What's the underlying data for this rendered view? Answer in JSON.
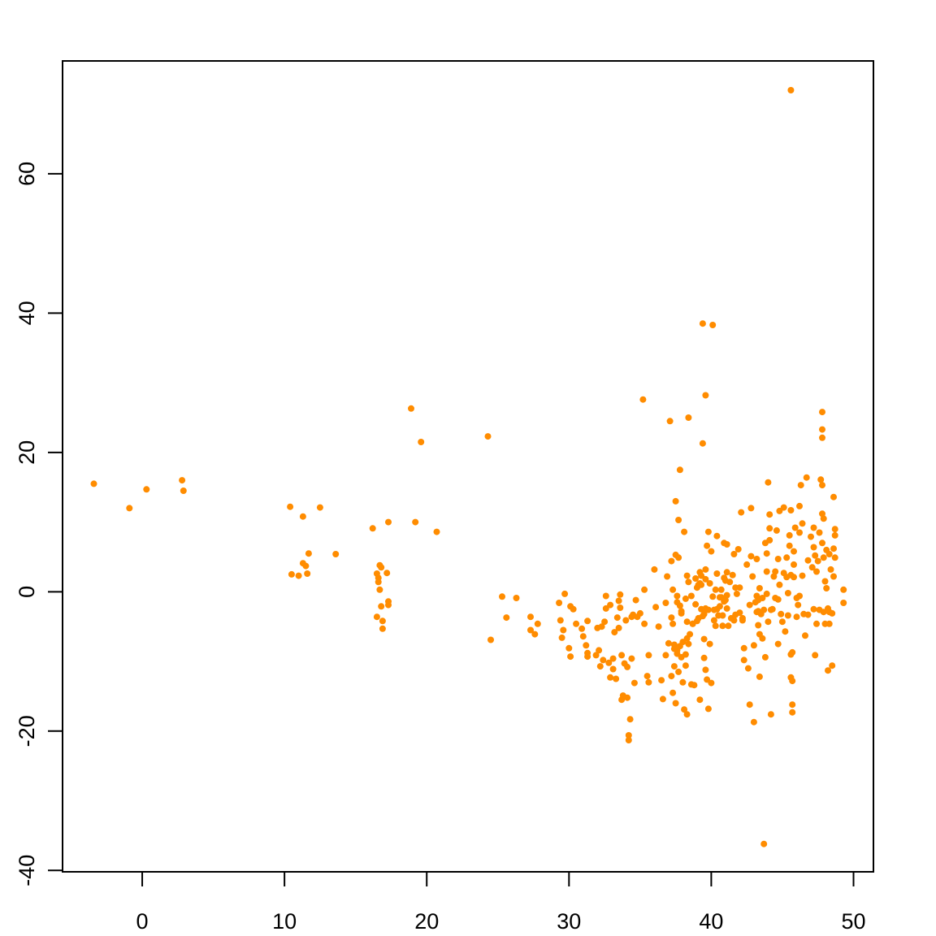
{
  "chart_data": {
    "type": "scatter",
    "title": "",
    "xlabel": "",
    "ylabel": "",
    "xlim": [
      -5.6,
      51.4
    ],
    "ylim": [
      -40.2,
      76.2
    ],
    "xticks": [
      0,
      10,
      20,
      30,
      40,
      50
    ],
    "yticks": [
      -40,
      -20,
      0,
      20,
      40,
      60
    ],
    "xtick_labels": [
      "0",
      "10",
      "20",
      "30",
      "40",
      "50"
    ],
    "ytick_labels": [
      "-40",
      "-20",
      "0",
      "20",
      "40",
      "60"
    ],
    "grid": false,
    "legend": "none",
    "point_color": "#ff8c00",
    "points": [
      [
        -3.4,
        15.5
      ],
      [
        -0.9,
        12.0
      ],
      [
        0.3,
        14.7
      ],
      [
        2.8,
        16.0
      ],
      [
        2.9,
        14.5
      ],
      [
        10.4,
        12.2
      ],
      [
        10.5,
        2.5
      ],
      [
        11.0,
        2.3
      ],
      [
        11.3,
        10.8
      ],
      [
        11.3,
        4.1
      ],
      [
        11.5,
        3.7
      ],
      [
        11.6,
        2.6
      ],
      [
        11.7,
        5.5
      ],
      [
        12.5,
        12.1
      ],
      [
        13.6,
        5.4
      ],
      [
        16.2,
        9.1
      ],
      [
        16.5,
        2.6
      ],
      [
        16.5,
        -3.6
      ],
      [
        16.6,
        2.0
      ],
      [
        16.6,
        1.4
      ],
      [
        16.7,
        3.8
      ],
      [
        16.7,
        0.3
      ],
      [
        16.8,
        3.5
      ],
      [
        16.8,
        -2.1
      ],
      [
        16.9,
        -4.2
      ],
      [
        16.9,
        -5.3
      ],
      [
        17.2,
        2.7
      ],
      [
        17.3,
        10.0
      ],
      [
        17.3,
        -1.4
      ],
      [
        17.3,
        -1.9
      ],
      [
        18.9,
        26.3
      ],
      [
        19.2,
        10.0
      ],
      [
        19.6,
        21.5
      ],
      [
        20.7,
        8.6
      ],
      [
        24.3,
        22.3
      ],
      [
        24.5,
        -6.9
      ],
      [
        25.3,
        -0.7
      ],
      [
        25.6,
        -3.7
      ],
      [
        26.3,
        -0.9
      ],
      [
        27.3,
        -3.6
      ],
      [
        27.3,
        -5.5
      ],
      [
        27.6,
        -6.1
      ],
      [
        27.8,
        -4.6
      ],
      [
        29.3,
        -1.6
      ],
      [
        29.4,
        -4.1
      ],
      [
        29.5,
        -6.6
      ],
      [
        29.6,
        -5.5
      ],
      [
        29.7,
        -0.3
      ],
      [
        30.0,
        -8.1
      ],
      [
        30.1,
        -2.1
      ],
      [
        30.1,
        -9.3
      ],
      [
        30.3,
        -2.5
      ],
      [
        30.5,
        -4.6
      ],
      [
        30.9,
        -5.3
      ],
      [
        31.0,
        -6.4
      ],
      [
        31.2,
        -7.7
      ],
      [
        31.3,
        -4.2
      ],
      [
        31.3,
        -8.8
      ],
      [
        31.3,
        -9.3
      ],
      [
        31.9,
        -9.1
      ],
      [
        32.0,
        -5.2
      ],
      [
        32.1,
        -8.4
      ],
      [
        32.2,
        -10.7
      ],
      [
        32.3,
        -5.0
      ],
      [
        32.4,
        -9.8
      ],
      [
        32.5,
        -4.3
      ],
      [
        32.6,
        -2.4
      ],
      [
        32.6,
        -0.6
      ],
      [
        32.8,
        -10.2
      ],
      [
        32.9,
        -12.3
      ],
      [
        32.9,
        -1.9
      ],
      [
        33.1,
        -9.6
      ],
      [
        33.1,
        -11.1
      ],
      [
        33.2,
        -5.8
      ],
      [
        33.3,
        -12.5
      ],
      [
        33.4,
        -3.7
      ],
      [
        33.5,
        -5.2
      ],
      [
        33.5,
        -1.3
      ],
      [
        33.6,
        -2.3
      ],
      [
        33.6,
        -0.4
      ],
      [
        33.7,
        -9.1
      ],
      [
        33.7,
        -15.5
      ],
      [
        33.8,
        -14.9
      ],
      [
        33.9,
        -10.3
      ],
      [
        34.0,
        -4.1
      ],
      [
        34.1,
        -10.8
      ],
      [
        34.1,
        -15.2
      ],
      [
        34.2,
        -20.6
      ],
      [
        34.2,
        -21.3
      ],
      [
        34.3,
        -18.3
      ],
      [
        34.4,
        -9.6
      ],
      [
        34.4,
        -3.6
      ],
      [
        34.5,
        -3.3
      ],
      [
        34.6,
        -13.1
      ],
      [
        34.7,
        -1.2
      ],
      [
        34.8,
        -3.6
      ],
      [
        35.0,
        -3.1
      ],
      [
        35.3,
        0.3
      ],
      [
        35.3,
        -4.6
      ],
      [
        35.2,
        27.6
      ],
      [
        35.5,
        -12.1
      ],
      [
        35.6,
        -9.1
      ],
      [
        35.6,
        -13.0
      ],
      [
        36.0,
        3.2
      ],
      [
        36.1,
        -2.2
      ],
      [
        36.3,
        -5.0
      ],
      [
        36.5,
        -12.7
      ],
      [
        36.6,
        -15.4
      ],
      [
        36.8,
        -9.1
      ],
      [
        36.8,
        -1.6
      ],
      [
        36.9,
        2.2
      ],
      [
        37.0,
        -7.4
      ],
      [
        37.1,
        24.5
      ],
      [
        37.2,
        -3.7
      ],
      [
        37.2,
        -12.1
      ],
      [
        37.2,
        4.4
      ],
      [
        37.3,
        -14.5
      ],
      [
        37.3,
        0.3
      ],
      [
        37.3,
        -4.6
      ],
      [
        37.4,
        -7.6
      ],
      [
        37.4,
        -8.2
      ],
      [
        37.4,
        -10.7
      ],
      [
        37.5,
        -16.0
      ],
      [
        37.5,
        13.0
      ],
      [
        37.5,
        5.3
      ],
      [
        37.6,
        -0.6
      ],
      [
        37.6,
        -8.9
      ],
      [
        37.6,
        -1.5
      ],
      [
        37.6,
        -8.4
      ],
      [
        37.7,
        4.9
      ],
      [
        37.7,
        -11.5
      ],
      [
        37.7,
        10.3
      ],
      [
        37.8,
        -2.0
      ],
      [
        37.8,
        -7.8
      ],
      [
        37.8,
        17.5
      ],
      [
        37.9,
        -9.4
      ],
      [
        37.9,
        -3.1
      ],
      [
        37.9,
        -2.8
      ],
      [
        38.0,
        -7.2
      ],
      [
        38.0,
        -13.0
      ],
      [
        38.1,
        8.6
      ],
      [
        38.1,
        -16.9
      ],
      [
        38.2,
        -1.0
      ],
      [
        38.2,
        -10.6
      ],
      [
        38.2,
        -9.0
      ],
      [
        38.3,
        -6.7
      ],
      [
        38.3,
        -4.3
      ],
      [
        38.3,
        2.3
      ],
      [
        38.3,
        -17.6
      ],
      [
        38.4,
        1.4
      ],
      [
        38.4,
        -7.5
      ],
      [
        38.4,
        25.0
      ],
      [
        38.5,
        -6.1
      ],
      [
        38.6,
        -0.6
      ],
      [
        38.6,
        -13.3
      ],
      [
        38.7,
        -4.6
      ],
      [
        38.7,
        -4.6
      ],
      [
        38.8,
        -13.4
      ],
      [
        38.9,
        -1.8
      ],
      [
        38.9,
        1.9
      ],
      [
        39.0,
        -4.2
      ],
      [
        39.0,
        0.6
      ],
      [
        39.1,
        1.0
      ],
      [
        39.1,
        -3.8
      ],
      [
        39.1,
        0.9
      ],
      [
        39.2,
        -15.5
      ],
      [
        39.2,
        2.8
      ],
      [
        39.2,
        1.2
      ],
      [
        39.3,
        -2.5
      ],
      [
        39.3,
        2.3
      ],
      [
        39.3,
        1.0
      ],
      [
        39.4,
        -3.5
      ],
      [
        39.4,
        38.5
      ],
      [
        39.4,
        21.3
      ],
      [
        39.5,
        -6.8
      ],
      [
        39.5,
        -9.5
      ],
      [
        39.5,
        -3.2
      ],
      [
        39.6,
        3.2
      ],
      [
        39.6,
        -2.4
      ],
      [
        39.6,
        1.8
      ],
      [
        39.6,
        -11.2
      ],
      [
        39.6,
        28.2
      ],
      [
        39.7,
        6.6
      ],
      [
        39.7,
        -12.6
      ],
      [
        39.8,
        -2.6
      ],
      [
        39.8,
        8.6
      ],
      [
        39.8,
        -16.8
      ],
      [
        39.9,
        1.2
      ],
      [
        39.9,
        -7.5
      ],
      [
        40.0,
        5.8
      ],
      [
        40.0,
        -13.1
      ],
      [
        40.1,
        38.3
      ],
      [
        40.1,
        -0.7
      ],
      [
        40.2,
        -2.6
      ],
      [
        40.2,
        -4.1
      ],
      [
        40.3,
        0.3
      ],
      [
        40.3,
        -4.9
      ],
      [
        40.4,
        -2.5
      ],
      [
        40.4,
        2.6
      ],
      [
        40.4,
        8.0
      ],
      [
        40.5,
        -3.4
      ],
      [
        40.6,
        -0.8
      ],
      [
        40.6,
        -2.1
      ],
      [
        40.7,
        0.3
      ],
      [
        40.7,
        -0.8
      ],
      [
        40.8,
        -3.4
      ],
      [
        40.8,
        -4.9
      ],
      [
        40.9,
        7.0
      ],
      [
        40.9,
        -1.4
      ],
      [
        40.9,
        2.0
      ],
      [
        41.0,
        1.6
      ],
      [
        41.0,
        -1.2
      ],
      [
        41.1,
        2.8
      ],
      [
        41.1,
        -0.5
      ],
      [
        41.1,
        -2.4
      ],
      [
        41.1,
        6.8
      ],
      [
        41.2,
        -4.9
      ],
      [
        41.3,
        1.4
      ],
      [
        41.4,
        -3.8
      ],
      [
        41.5,
        2.4
      ],
      [
        41.6,
        -4.1
      ],
      [
        41.6,
        5.4
      ],
      [
        41.7,
        0.6
      ],
      [
        41.7,
        -3.3
      ],
      [
        41.8,
        -0.3
      ],
      [
        41.9,
        6.1
      ],
      [
        42.0,
        0.6
      ],
      [
        42.0,
        -3.0
      ],
      [
        42.1,
        11.4
      ],
      [
        42.2,
        -3.8
      ],
      [
        42.2,
        -4.1
      ],
      [
        42.3,
        -8.1
      ],
      [
        42.3,
        -9.8
      ],
      [
        42.5,
        3.9
      ],
      [
        42.6,
        -11.0
      ],
      [
        42.7,
        -1.9
      ],
      [
        42.7,
        -16.2
      ],
      [
        42.8,
        5.1
      ],
      [
        42.8,
        12.0
      ],
      [
        42.9,
        2.2
      ],
      [
        43.0,
        -7.7
      ],
      [
        43.0,
        -18.7
      ],
      [
        43.1,
        -1.5
      ],
      [
        43.2,
        -0.6
      ],
      [
        43.2,
        4.7
      ],
      [
        43.2,
        -2.9
      ],
      [
        43.3,
        -1.2
      ],
      [
        43.3,
        -2.8
      ],
      [
        43.3,
        -4.8
      ],
      [
        43.4,
        -12.2
      ],
      [
        43.4,
        -6.1
      ],
      [
        43.4,
        0.5
      ],
      [
        43.5,
        -3.2
      ],
      [
        43.6,
        -0.9
      ],
      [
        43.6,
        -6.7
      ],
      [
        43.7,
        -36.2
      ],
      [
        43.7,
        -2.6
      ],
      [
        43.8,
        -9.4
      ],
      [
        43.8,
        7.0
      ],
      [
        43.9,
        -0.3
      ],
      [
        43.9,
        2.9
      ],
      [
        43.9,
        5.5
      ],
      [
        44.0,
        15.7
      ],
      [
        44.0,
        -4.3
      ],
      [
        44.1,
        9.1
      ],
      [
        44.1,
        7.4
      ],
      [
        44.1,
        11.1
      ],
      [
        44.2,
        -17.6
      ],
      [
        44.2,
        -2.6
      ],
      [
        44.3,
        -2.5
      ],
      [
        44.4,
        2.2
      ],
      [
        44.5,
        -0.9
      ],
      [
        44.5,
        2.9
      ],
      [
        44.6,
        8.8
      ],
      [
        44.7,
        4.7
      ],
      [
        44.7,
        -1.1
      ],
      [
        44.7,
        -7.5
      ],
      [
        44.8,
        1.0
      ],
      [
        44.8,
        11.6
      ],
      [
        44.9,
        -3.2
      ],
      [
        45.0,
        -4.3
      ],
      [
        45.1,
        12.1
      ],
      [
        45.1,
        2.7
      ],
      [
        45.2,
        -5.7
      ],
      [
        45.3,
        4.9
      ],
      [
        45.3,
        2.1
      ],
      [
        45.4,
        -0.2
      ],
      [
        45.4,
        -3.4
      ],
      [
        45.5,
        8.1
      ],
      [
        45.5,
        6.6
      ],
      [
        45.6,
        72.0
      ],
      [
        45.6,
        -12.3
      ],
      [
        45.6,
        -9.0
      ],
      [
        45.6,
        11.7
      ],
      [
        45.6,
        2.4
      ],
      [
        45.7,
        -16.2
      ],
      [
        45.7,
        -17.3
      ],
      [
        45.7,
        -12.8
      ],
      [
        45.7,
        -8.7
      ],
      [
        45.8,
        5.8
      ],
      [
        45.8,
        3.9
      ],
      [
        45.8,
        2.1
      ],
      [
        45.9,
        9.2
      ],
      [
        46.0,
        -3.6
      ],
      [
        46.0,
        -0.9
      ],
      [
        46.1,
        -1.9
      ],
      [
        46.2,
        12.3
      ],
      [
        46.2,
        -0.6
      ],
      [
        46.2,
        8.5
      ],
      [
        46.3,
        15.3
      ],
      [
        46.4,
        2.3
      ],
      [
        46.4,
        9.8
      ],
      [
        46.5,
        -3.2
      ],
      [
        46.6,
        -6.3
      ],
      [
        46.7,
        16.4
      ],
      [
        46.8,
        -3.3
      ],
      [
        46.8,
        4.5
      ],
      [
        47.0,
        7.9
      ],
      [
        47.1,
        3.5
      ],
      [
        47.2,
        9.2
      ],
      [
        47.2,
        -2.5
      ],
      [
        47.2,
        6.4
      ],
      [
        47.3,
        -9.1
      ],
      [
        47.3,
        5.2
      ],
      [
        47.4,
        2.9
      ],
      [
        47.4,
        -4.6
      ],
      [
        47.5,
        4.4
      ],
      [
        47.6,
        -2.6
      ],
      [
        47.6,
        8.5
      ],
      [
        47.7,
        16.1
      ],
      [
        47.8,
        25.8
      ],
      [
        47.8,
        23.3
      ],
      [
        47.8,
        22.1
      ],
      [
        47.8,
        15.3
      ],
      [
        47.8,
        11.2
      ],
      [
        47.8,
        7.0
      ],
      [
        47.9,
        10.5
      ],
      [
        47.9,
        4.9
      ],
      [
        47.9,
        -2.9
      ],
      [
        48.0,
        -4.6
      ],
      [
        48.0,
        1.5
      ],
      [
        48.1,
        6.0
      ],
      [
        48.1,
        0.5
      ],
      [
        48.2,
        -2.4
      ],
      [
        48.2,
        -11.3
      ],
      [
        48.3,
        5.4
      ],
      [
        48.3,
        -2.9
      ],
      [
        48.3,
        -4.6
      ],
      [
        48.4,
        3.2
      ],
      [
        48.5,
        -3.1
      ],
      [
        48.5,
        -10.6
      ],
      [
        48.6,
        13.6
      ],
      [
        48.6,
        6.2
      ],
      [
        48.6,
        2.2
      ],
      [
        48.7,
        9.0
      ],
      [
        48.7,
        4.9
      ],
      [
        48.7,
        8.1
      ],
      [
        49.3,
        0.3
      ],
      [
        49.3,
        -1.6
      ]
    ]
  }
}
